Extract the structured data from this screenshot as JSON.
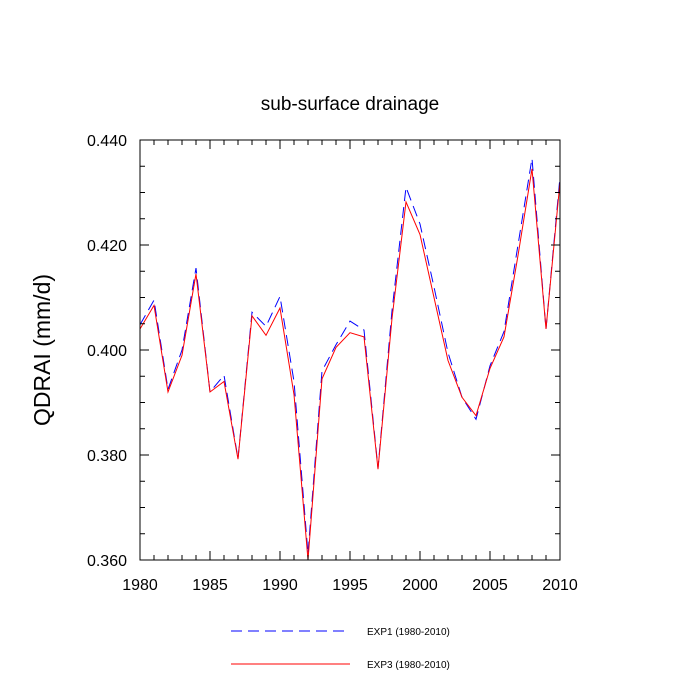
{
  "chart_data": {
    "type": "line",
    "title": "sub-surface drainage",
    "ylabel": "QDRAI  (mm/d)",
    "xlabel": "",
    "xlim": [
      1980,
      2010
    ],
    "ylim": [
      0.36,
      0.44
    ],
    "x_ticks": [
      1980,
      1985,
      1990,
      1995,
      2000,
      2005,
      2010
    ],
    "x_tick_labels": [
      "1980",
      "1985",
      "1990",
      "1995",
      "2000",
      "2005",
      "2010"
    ],
    "y_ticks": [
      0.36,
      0.38,
      0.4,
      0.42,
      0.44
    ],
    "y_tick_labels": [
      "0.360",
      "0.380",
      "0.400",
      "0.420",
      "0.440"
    ],
    "grid": false,
    "legend_position": "bottom",
    "x": [
      1980,
      1981,
      1982,
      1983,
      1984,
      1985,
      1986,
      1987,
      1988,
      1989,
      1990,
      1991,
      1992,
      1993,
      1994,
      1995,
      1996,
      1997,
      1998,
      1999,
      2000,
      2001,
      2002,
      2003,
      2004,
      2005,
      2006,
      2007,
      2008,
      2009,
      2010
    ],
    "series": [
      {
        "name": "EXP1 (1980-2010)",
        "color": "#0000ff",
        "style": "dashed",
        "values": [
          0.4048,
          0.4095,
          0.3925,
          0.4,
          0.4156,
          0.392,
          0.3952,
          0.3793,
          0.4072,
          0.4045,
          0.4102,
          0.394,
          0.3612,
          0.396,
          0.401,
          0.4055,
          0.4038,
          0.3775,
          0.4075,
          0.431,
          0.424,
          0.412,
          0.3995,
          0.391,
          0.3868,
          0.397,
          0.4035,
          0.42,
          0.4365,
          0.404,
          0.433
        ]
      },
      {
        "name": "EXP3 (1980-2010)",
        "color": "#ff0000",
        "style": "solid",
        "values": [
          0.404,
          0.4085,
          0.392,
          0.399,
          0.4145,
          0.392,
          0.394,
          0.3792,
          0.4065,
          0.4028,
          0.408,
          0.3915,
          0.36,
          0.3945,
          0.4005,
          0.4033,
          0.4025,
          0.3773,
          0.406,
          0.4282,
          0.422,
          0.41,
          0.398,
          0.391,
          0.3875,
          0.3965,
          0.4025,
          0.418,
          0.4345,
          0.404,
          0.432
        ]
      }
    ]
  }
}
